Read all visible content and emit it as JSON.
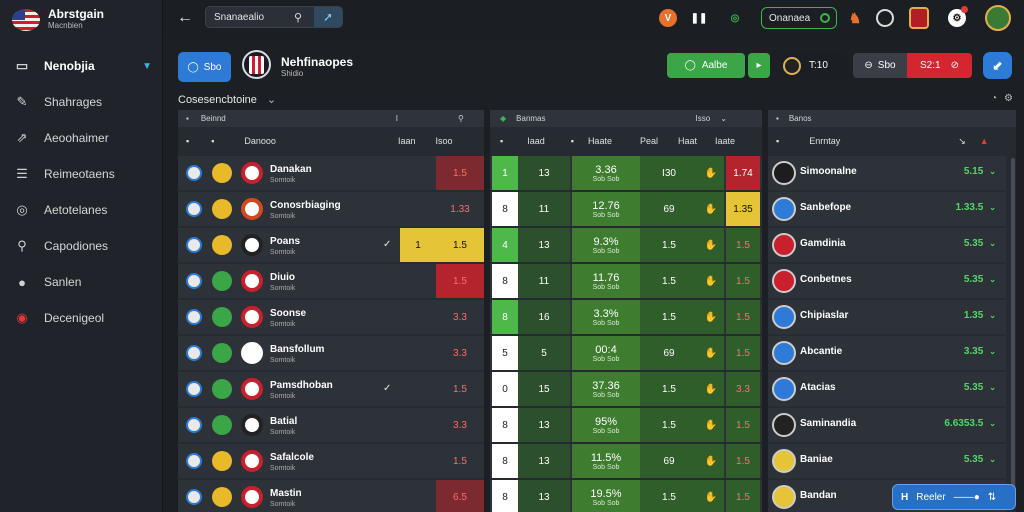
{
  "brand": {
    "title": "Abrstgain",
    "subtitle": "Macnbien"
  },
  "sidebar": {
    "items": [
      {
        "label": "Nenobjia",
        "icon": "scoreboard-icon"
      },
      {
        "label": "Shahrages",
        "icon": "pitch-icon"
      },
      {
        "label": "Aeoohaimer",
        "icon": "stats-icon"
      },
      {
        "label": "Reimeotaens",
        "icon": "news-icon"
      },
      {
        "label": "Aetotelanes",
        "icon": "chart-icon"
      },
      {
        "label": "Capodiones",
        "icon": "search-icon"
      },
      {
        "label": "Sanlen",
        "icon": "globe-icon"
      },
      {
        "label": "Decenigeol",
        "icon": "club-icon"
      }
    ]
  },
  "topbar": {
    "search_value": "Snanaealio",
    "status_label": "Onanaea"
  },
  "header": {
    "blue_btn": "Sbo",
    "match_title": "Nehfinaopes",
    "match_sub": "Shidio",
    "green_btn": "Aalbe",
    "score_chip": "T:10",
    "dark_chip": "Sbo",
    "red_chip": "S2:1"
  },
  "section": {
    "label": "Cosesencbtoine"
  },
  "left_panel": {
    "tab1": "Beinnd",
    "tab2": "I",
    "col_headers": [
      "Danooo",
      "Iaan",
      "Isoo"
    ]
  },
  "mid_panel": {
    "tab1": "Banmas",
    "tab2": "Isso",
    "col_headers": [
      "Iaad",
      "Haate",
      "Peal",
      "Haat",
      "Iaate"
    ]
  },
  "right_panel": {
    "tab1": "Banos",
    "col_header": "Enrntay"
  },
  "players": [
    {
      "name": "Danakan",
      "sub": "Somtoik",
      "mark": "",
      "odd1": "",
      "odd2": "1.5",
      "bg": "red-dark",
      "m1": "1",
      "m2": "13",
      "pct": "3.36",
      "pct_sub": "Sob Sob",
      "v3": "I30",
      "v5": "1.74",
      "v5bg": "red"
    },
    {
      "name": "Conosrbiaging",
      "sub": "Somtoik",
      "mark": "",
      "odd1": "",
      "odd2": "1.33",
      "bg": "",
      "m1": "8",
      "m2": "11",
      "pct": "12.76",
      "pct_sub": "Sob Sob",
      "v3": "69",
      "v5": "1.35",
      "v5bg": "yellow"
    },
    {
      "name": "Poans",
      "sub": "Somtoik",
      "mark": "✓",
      "odd1": "1",
      "odd2": "1.5",
      "bg": "yellow",
      "m1": "4",
      "m2": "13",
      "pct": "9.3%",
      "pct_sub": "Sob Sob",
      "v3": "1.5",
      "v5": "1.5",
      "v5bg": ""
    },
    {
      "name": "Diuio",
      "sub": "Somtoik",
      "mark": "",
      "odd1": "",
      "odd2": "1.5",
      "bg": "red",
      "m1": "8",
      "m2": "11",
      "pct": "11.76",
      "pct_sub": "Sob Sob",
      "v3": "1.5",
      "v5": "1.5",
      "v5bg": ""
    },
    {
      "name": "Soonse",
      "sub": "Somtoik",
      "mark": "",
      "odd1": "",
      "odd2": "3.3",
      "bg": "",
      "m1": "8",
      "m2": "16",
      "pct": "3.3%",
      "pct_sub": "Sob Sob",
      "v3": "1.5",
      "v5": "1.5",
      "v5bg": ""
    },
    {
      "name": "Bansfollum",
      "sub": "Somtoik",
      "mark": "",
      "odd1": "",
      "odd2": "3.3",
      "bg": "",
      "m1": "5",
      "m2": "5",
      "pct": "00:4",
      "pct_sub": "Sob Sob",
      "v3": "69",
      "v5": "1.5",
      "v5bg": ""
    },
    {
      "name": "Pamsdhoban",
      "sub": "Somtoik",
      "mark": "✓",
      "odd1": "",
      "odd2": "1.5",
      "bg": "",
      "m1": "0",
      "m2": "15",
      "pct": "37.36",
      "pct_sub": "Sob Sob",
      "v3": "1.5",
      "v5": "3.3",
      "v5bg": ""
    },
    {
      "name": "Batial",
      "sub": "Somtoik",
      "mark": "",
      "odd1": "",
      "odd2": "3.3",
      "bg": "",
      "m1": "8",
      "m2": "13",
      "pct": "95%",
      "pct_sub": "Sob Sob",
      "v3": "1.5",
      "v5": "1.5",
      "v5bg": ""
    },
    {
      "name": "Safalcole",
      "sub": "Somtoik",
      "mark": "",
      "odd1": "",
      "odd2": "1.5",
      "bg": "",
      "m1": "8",
      "m2": "13",
      "pct": "11.5%",
      "pct_sub": "Sob Sob",
      "v3": "69",
      "v5": "1.5",
      "v5bg": ""
    },
    {
      "name": "Mastin",
      "sub": "Somtoik",
      "mark": "",
      "odd1": "",
      "odd2": "6.5",
      "bg": "red-dark",
      "m1": "8",
      "m2": "13",
      "pct": "19.5%",
      "pct_sub": "Sob Sob",
      "v3": "1.5",
      "v5": "1.5",
      "v5bg": ""
    }
  ],
  "teams": [
    {
      "name": "Simoonalne",
      "val": "5.15"
    },
    {
      "name": "Sanbefope",
      "val": "1.33.5"
    },
    {
      "name": "Gamdinia",
      "val": "5.35"
    },
    {
      "name": "Conbetnes",
      "val": "5.35"
    },
    {
      "name": "Chipiaslar",
      "val": "1.35"
    },
    {
      "name": "Abcantie",
      "val": "3.35"
    },
    {
      "name": "Atacias",
      "val": "5.35"
    },
    {
      "name": "Saminandia",
      "val": "6.6353.5"
    },
    {
      "name": "Baniae",
      "val": "5.35"
    },
    {
      "name": "Bandan",
      "val": ""
    }
  ],
  "toast": {
    "label": "Reeler"
  },
  "colors": {
    "accent_blue": "#2d7bd6",
    "green": "#3aa648",
    "red": "#d32631",
    "yellow": "#e6c437"
  }
}
